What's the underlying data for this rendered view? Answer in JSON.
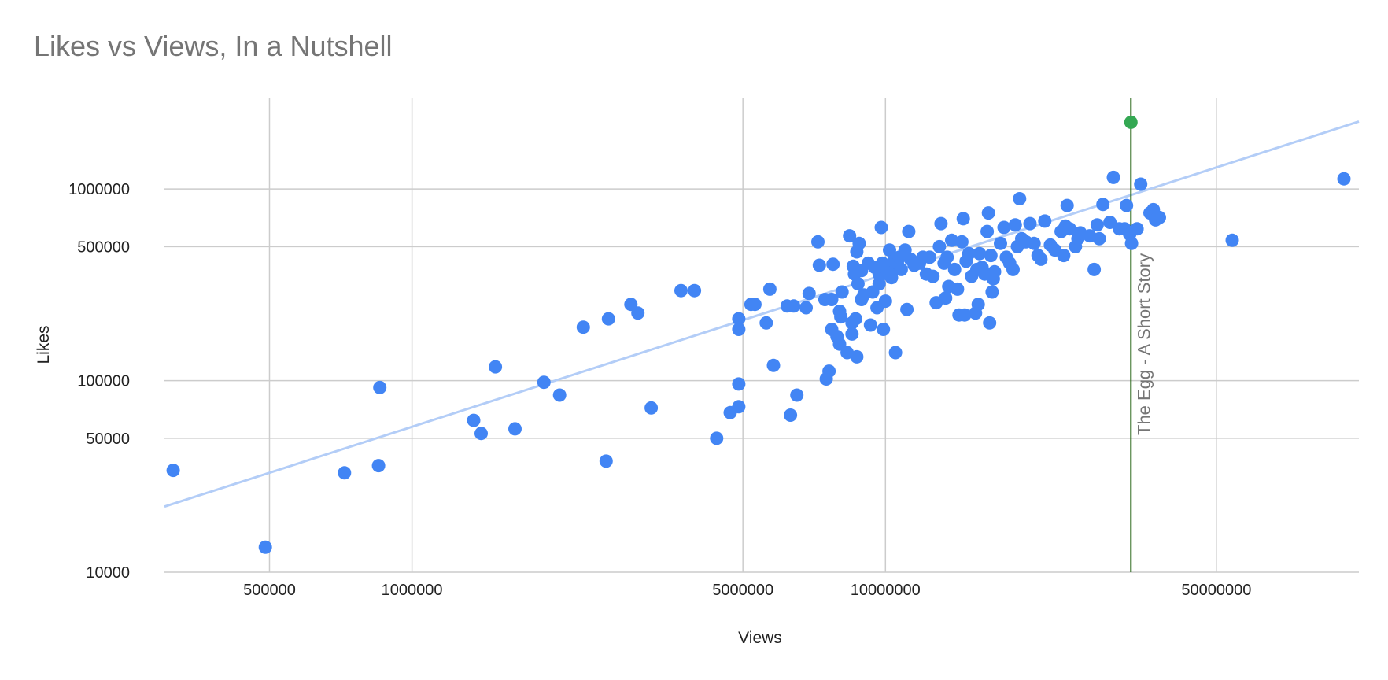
{
  "colors": {
    "title": "#757575",
    "grid": "#cccccc",
    "point": "#4285f4",
    "trendline": "#b3cdf7",
    "highlight_point": "#34a853",
    "annotation_line": "#2e6b1e",
    "annotation_text": "#757575",
    "tick_text": "#222222"
  },
  "chart_data": {
    "type": "scatter",
    "title": "Likes vs Views, In a Nutshell",
    "xlabel": "Views",
    "ylabel": "Likes",
    "x_scale": "log",
    "y_scale": "log",
    "xlim": [
      300000,
      100000000
    ],
    "ylim": [
      10000,
      3000000
    ],
    "x_ticks": [
      500000,
      1000000,
      5000000,
      10000000,
      50000000
    ],
    "y_ticks": [
      10000,
      50000,
      100000,
      500000,
      1000000
    ],
    "x_gridlines": [
      500000,
      1000000,
      5000000,
      10000000,
      50000000
    ],
    "y_gridlines": [
      10000,
      50000,
      100000,
      500000,
      1000000
    ],
    "grid": true,
    "legend": "none",
    "trendline": {
      "type": "power",
      "points": [
        [
          300000,
          22000
        ],
        [
          100000000,
          2250000
        ]
      ]
    },
    "annotation": {
      "x": 33000000,
      "label": "The Egg - A Short Story",
      "point": [
        33000000,
        2230000
      ]
    },
    "points": [
      [
        313000,
        34000
      ],
      [
        490000,
        13500
      ],
      [
        720000,
        33000
      ],
      [
        850000,
        36000
      ],
      [
        855000,
        92000
      ],
      [
        1350000,
        62000
      ],
      [
        1400000,
        53000
      ],
      [
        1500000,
        118000
      ],
      [
        1650000,
        56000
      ],
      [
        1900000,
        98000
      ],
      [
        2050000,
        84000
      ],
      [
        2300000,
        190000
      ],
      [
        2570000,
        38000
      ],
      [
        2600000,
        210000
      ],
      [
        2900000,
        250000
      ],
      [
        3000000,
        225000
      ],
      [
        3200000,
        72000
      ],
      [
        3700000,
        295000
      ],
      [
        3950000,
        295000
      ],
      [
        4400000,
        50000
      ],
      [
        4700000,
        68000
      ],
      [
        4900000,
        96000
      ],
      [
        4900000,
        73000
      ],
      [
        4900000,
        210000
      ],
      [
        4900000,
        185000
      ],
      [
        5200000,
        250000
      ],
      [
        5300000,
        250000
      ],
      [
        5600000,
        200000
      ],
      [
        5700000,
        300000
      ],
      [
        5800000,
        120000
      ],
      [
        6200000,
        245000
      ],
      [
        6300000,
        66000
      ],
      [
        6400000,
        245000
      ],
      [
        6500000,
        84000
      ],
      [
        6800000,
        240000
      ],
      [
        6900000,
        285000
      ],
      [
        7200000,
        530000
      ],
      [
        7250000,
        400000
      ],
      [
        7450000,
        265000
      ],
      [
        7500000,
        102000
      ],
      [
        7600000,
        112000
      ],
      [
        7700000,
        265000
      ],
      [
        7700000,
        185000
      ],
      [
        7750000,
        405000
      ],
      [
        7900000,
        170000
      ],
      [
        8000000,
        155000
      ],
      [
        8000000,
        230000
      ],
      [
        8050000,
        215000
      ],
      [
        8100000,
        290000
      ],
      [
        8300000,
        140000
      ],
      [
        8400000,
        570000
      ],
      [
        8500000,
        200000
      ],
      [
        8500000,
        175000
      ],
      [
        8550000,
        395000
      ],
      [
        8600000,
        360000
      ],
      [
        8650000,
        210000
      ],
      [
        8700000,
        133000
      ],
      [
        8700000,
        470000
      ],
      [
        8750000,
        320000
      ],
      [
        8800000,
        520000
      ],
      [
        8900000,
        375000
      ],
      [
        8900000,
        265000
      ],
      [
        9000000,
        280000
      ],
      [
        9200000,
        410000
      ],
      [
        9300000,
        195000
      ],
      [
        9400000,
        290000
      ],
      [
        9500000,
        390000
      ],
      [
        9600000,
        240000
      ],
      [
        9700000,
        320000
      ],
      [
        9700000,
        360000
      ],
      [
        9800000,
        630000
      ],
      [
        9850000,
        410000
      ],
      [
        9900000,
        185000
      ],
      [
        10000000,
        260000
      ],
      [
        10100000,
        360000
      ],
      [
        10200000,
        480000
      ],
      [
        10250000,
        380000
      ],
      [
        10300000,
        345000
      ],
      [
        10400000,
        420000
      ],
      [
        10500000,
        140000
      ],
      [
        10600000,
        410000
      ],
      [
        10700000,
        440000
      ],
      [
        10800000,
        380000
      ],
      [
        11000000,
        480000
      ],
      [
        11100000,
        235000
      ],
      [
        11200000,
        600000
      ],
      [
        11300000,
        430000
      ],
      [
        11500000,
        400000
      ],
      [
        11800000,
        410000
      ],
      [
        12000000,
        440000
      ],
      [
        12200000,
        360000
      ],
      [
        12400000,
        440000
      ],
      [
        12600000,
        350000
      ],
      [
        12800000,
        255000
      ],
      [
        13000000,
        500000
      ],
      [
        13100000,
        660000
      ],
      [
        13300000,
        410000
      ],
      [
        13400000,
        270000
      ],
      [
        13500000,
        440000
      ],
      [
        13600000,
        310000
      ],
      [
        13800000,
        540000
      ],
      [
        14000000,
        380000
      ],
      [
        14200000,
        300000
      ],
      [
        14300000,
        220000
      ],
      [
        14500000,
        530000
      ],
      [
        14600000,
        700000
      ],
      [
        14700000,
        220000
      ],
      [
        14800000,
        420000
      ],
      [
        15000000,
        460000
      ],
      [
        15200000,
        350000
      ],
      [
        15500000,
        225000
      ],
      [
        15600000,
        380000
      ],
      [
        15700000,
        250000
      ],
      [
        15800000,
        460000
      ],
      [
        16000000,
        390000
      ],
      [
        16200000,
        360000
      ],
      [
        16400000,
        600000
      ],
      [
        16500000,
        750000
      ],
      [
        16600000,
        200000
      ],
      [
        16700000,
        450000
      ],
      [
        16800000,
        290000
      ],
      [
        16900000,
        340000
      ],
      [
        17000000,
        370000
      ],
      [
        17500000,
        520000
      ],
      [
        17800000,
        630000
      ],
      [
        18000000,
        440000
      ],
      [
        18300000,
        410000
      ],
      [
        18600000,
        380000
      ],
      [
        18800000,
        650000
      ],
      [
        19000000,
        500000
      ],
      [
        19200000,
        890000
      ],
      [
        19400000,
        550000
      ],
      [
        19800000,
        530000
      ],
      [
        20200000,
        660000
      ],
      [
        20600000,
        520000
      ],
      [
        21000000,
        450000
      ],
      [
        21300000,
        430000
      ],
      [
        21700000,
        680000
      ],
      [
        22300000,
        510000
      ],
      [
        22800000,
        480000
      ],
      [
        23500000,
        600000
      ],
      [
        23800000,
        450000
      ],
      [
        24000000,
        640000
      ],
      [
        24200000,
        820000
      ],
      [
        24500000,
        620000
      ],
      [
        25200000,
        500000
      ],
      [
        25500000,
        550000
      ],
      [
        25800000,
        590000
      ],
      [
        27000000,
        570000
      ],
      [
        27600000,
        380000
      ],
      [
        28000000,
        650000
      ],
      [
        28300000,
        550000
      ],
      [
        28800000,
        830000
      ],
      [
        29800000,
        670000
      ],
      [
        30300000,
        1150000
      ],
      [
        31200000,
        620000
      ],
      [
        32000000,
        620000
      ],
      [
        32300000,
        820000
      ],
      [
        32800000,
        580000
      ],
      [
        33100000,
        520000
      ],
      [
        34000000,
        620000
      ],
      [
        34600000,
        1060000
      ],
      [
        36200000,
        750000
      ],
      [
        36800000,
        780000
      ],
      [
        37200000,
        690000
      ],
      [
        37900000,
        710000
      ],
      [
        54000000,
        540000
      ],
      [
        93000000,
        1130000
      ]
    ]
  }
}
